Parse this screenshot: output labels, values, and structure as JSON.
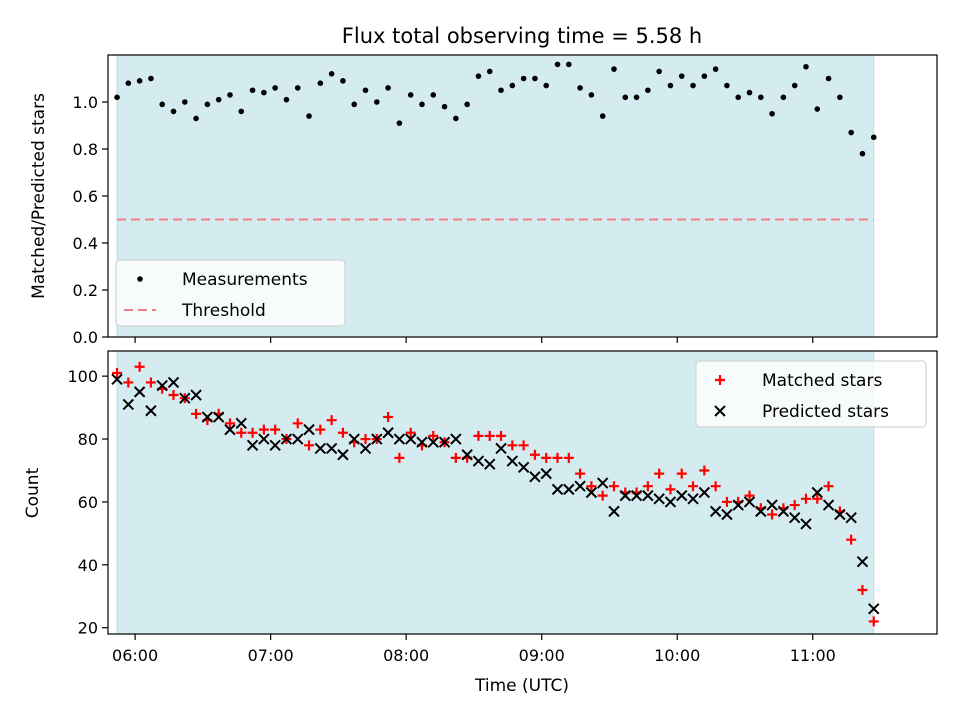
{
  "chart_data": [
    {
      "type": "scatter",
      "title": "Flux total observing time = 5.58 h",
      "xlabel": "",
      "ylabel": "Matched/Predicted stars",
      "x_unit": "time (UTC)",
      "xlim": [
        "05:48",
        "11:55"
      ],
      "ylim": [
        0,
        1.2
      ],
      "yticks": [
        "0.0",
        "0.2",
        "0.4",
        "0.6",
        "0.8",
        "1.0"
      ],
      "grid": false,
      "legend": "lower-left",
      "observing_window": [
        "05:52",
        "11:27"
      ],
      "observing_window_color": "#d4ebf0",
      "series": [
        {
          "name": "Measurements",
          "color": "#000000",
          "marker": "dot",
          "x": [
            "05:52",
            "05:57",
            "06:02",
            "06:07",
            "06:12",
            "06:17",
            "06:22",
            "06:27",
            "06:32",
            "06:37",
            "06:42",
            "06:47",
            "06:52",
            "06:57",
            "07:02",
            "07:07",
            "07:12",
            "07:17",
            "07:22",
            "07:27",
            "07:32",
            "07:37",
            "07:42",
            "07:47",
            "07:52",
            "07:57",
            "08:02",
            "08:07",
            "08:12",
            "08:17",
            "08:22",
            "08:27",
            "08:32",
            "08:37",
            "08:42",
            "08:47",
            "08:52",
            "08:57",
            "09:02",
            "09:07",
            "09:12",
            "09:17",
            "09:22",
            "09:27",
            "09:32",
            "09:37",
            "09:42",
            "09:47",
            "09:52",
            "09:57",
            "10:02",
            "10:07",
            "10:12",
            "10:17",
            "10:22",
            "10:27",
            "10:32",
            "10:37",
            "10:42",
            "10:47",
            "10:52",
            "10:57",
            "11:02",
            "11:07",
            "11:12",
            "11:17",
            "11:22",
            "11:27"
          ],
          "y": [
            1.02,
            1.08,
            1.09,
            1.1,
            0.99,
            0.96,
            1.0,
            0.93,
            0.99,
            1.01,
            1.03,
            0.96,
            1.05,
            1.04,
            1.06,
            1.01,
            1.06,
            0.94,
            1.08,
            1.12,
            1.09,
            0.99,
            1.05,
            1.0,
            1.06,
            0.91,
            1.03,
            0.99,
            1.03,
            0.98,
            0.93,
            0.99,
            1.11,
            1.13,
            1.05,
            1.07,
            1.1,
            1.1,
            1.07,
            1.16,
            1.16,
            1.06,
            1.03,
            0.94,
            1.14,
            1.02,
            1.02,
            1.05,
            1.13,
            1.07,
            1.11,
            1.07,
            1.11,
            1.14,
            1.07,
            1.02,
            1.04,
            1.02,
            0.95,
            1.02,
            1.07,
            1.15,
            0.97,
            1.1,
            1.02,
            0.87,
            0.78,
            0.85
          ]
        },
        {
          "name": "Threshold",
          "color": "#f08080",
          "style": "dashed",
          "x": [
            "05:52",
            "11:27"
          ],
          "y": [
            0.5,
            0.5
          ]
        }
      ]
    },
    {
      "type": "scatter",
      "title": "",
      "xlabel": "Time (UTC)",
      "ylabel": "Count",
      "xlim": [
        "05:48",
        "11:55"
      ],
      "ylim": [
        18,
        108
      ],
      "xticks": [
        "06:00",
        "07:00",
        "08:00",
        "09:00",
        "10:00",
        "11:00"
      ],
      "yticks": [
        "20",
        "40",
        "60",
        "80",
        "100"
      ],
      "grid": false,
      "legend": "upper-right",
      "observing_window": [
        "05:52",
        "11:27"
      ],
      "observing_window_color": "#d4ebf0",
      "series": [
        {
          "name": "Matched stars",
          "color": "#ff0000",
          "marker": "plus",
          "x": [
            "05:52",
            "05:57",
            "06:02",
            "06:07",
            "06:12",
            "06:17",
            "06:22",
            "06:27",
            "06:32",
            "06:37",
            "06:42",
            "06:47",
            "06:52",
            "06:57",
            "07:02",
            "07:07",
            "07:12",
            "07:17",
            "07:22",
            "07:27",
            "07:32",
            "07:37",
            "07:42",
            "07:47",
            "07:52",
            "07:57",
            "08:02",
            "08:07",
            "08:12",
            "08:17",
            "08:22",
            "08:27",
            "08:32",
            "08:37",
            "08:42",
            "08:47",
            "08:52",
            "08:57",
            "09:02",
            "09:07",
            "09:12",
            "09:17",
            "09:22",
            "09:27",
            "09:32",
            "09:37",
            "09:42",
            "09:47",
            "09:52",
            "09:57",
            "10:02",
            "10:07",
            "10:12",
            "10:17",
            "10:22",
            "10:27",
            "10:32",
            "10:37",
            "10:42",
            "10:47",
            "10:52",
            "10:57",
            "11:02",
            "11:07",
            "11:12",
            "11:17",
            "11:22",
            "11:27"
          ],
          "y": [
            101,
            98,
            103,
            98,
            96,
            94,
            93,
            88,
            86,
            88,
            85,
            82,
            82,
            83,
            83,
            80,
            85,
            78,
            83,
            86,
            82,
            79,
            80,
            80,
            87,
            74,
            82,
            78,
            81,
            79,
            74,
            74,
            81,
            81,
            81,
            78,
            78,
            75,
            74,
            74,
            74,
            69,
            65,
            62,
            65,
            63,
            63,
            65,
            69,
            64,
            69,
            65,
            70,
            65,
            60,
            60,
            62,
            58,
            56,
            58,
            59,
            61,
            61,
            65,
            57,
            48,
            32,
            22
          ]
        },
        {
          "name": "Predicted stars",
          "color": "#000000",
          "marker": "x",
          "x": [
            "05:52",
            "05:57",
            "06:02",
            "06:07",
            "06:12",
            "06:17",
            "06:22",
            "06:27",
            "06:32",
            "06:37",
            "06:42",
            "06:47",
            "06:52",
            "06:57",
            "07:02",
            "07:07",
            "07:12",
            "07:17",
            "07:22",
            "07:27",
            "07:32",
            "07:37",
            "07:42",
            "07:47",
            "07:52",
            "07:57",
            "08:02",
            "08:07",
            "08:12",
            "08:17",
            "08:22",
            "08:27",
            "08:32",
            "08:37",
            "08:42",
            "08:47",
            "08:52",
            "08:57",
            "09:02",
            "09:07",
            "09:12",
            "09:17",
            "09:22",
            "09:27",
            "09:32",
            "09:37",
            "09:42",
            "09:47",
            "09:52",
            "09:57",
            "10:02",
            "10:07",
            "10:12",
            "10:17",
            "10:22",
            "10:27",
            "10:32",
            "10:37",
            "10:42",
            "10:47",
            "10:52",
            "10:57",
            "11:02",
            "11:07",
            "11:12",
            "11:17",
            "11:22",
            "11:27"
          ],
          "y": [
            99,
            91,
            95,
            89,
            97,
            98,
            93,
            94,
            87,
            87,
            83,
            85,
            78,
            80,
            78,
            80,
            80,
            83,
            77,
            77,
            75,
            80,
            77,
            80,
            82,
            80,
            80,
            79,
            79,
            79,
            80,
            75,
            73,
            72,
            77,
            73,
            71,
            68,
            69,
            64,
            64,
            65,
            63,
            66,
            57,
            62,
            62,
            62,
            61,
            60,
            62,
            61,
            63,
            57,
            56,
            59,
            60,
            57,
            59,
            57,
            55,
            53,
            63,
            59,
            56,
            55,
            41,
            26
          ]
        }
      ]
    }
  ]
}
